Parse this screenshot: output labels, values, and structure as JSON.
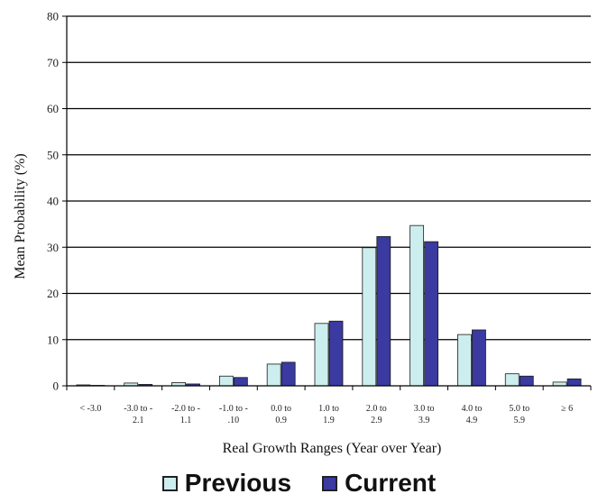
{
  "chart_data": {
    "type": "bar",
    "title": "",
    "xlabel": "Real Growth Ranges (Year over Year)",
    "ylabel": "Mean Probability (%)",
    "ylim": [
      0,
      80
    ],
    "yticks": [
      "0",
      "10",
      "20",
      "30",
      "40",
      "50",
      "60",
      "70",
      "80"
    ],
    "grid": "horizontal",
    "legend_position": "bottom",
    "categories": [
      [
        "< -3.0"
      ],
      [
        "-3.0 to -",
        "2.1"
      ],
      [
        "-2.0 to -",
        "1.1"
      ],
      [
        "-1.0 to -",
        ".10"
      ],
      [
        "0.0 to",
        "0.9"
      ],
      [
        "1.0 to",
        "1.9"
      ],
      [
        "2.0 to",
        "2.9"
      ],
      [
        "3.0 to",
        "3.9"
      ],
      [
        "4.0 to",
        "4.9"
      ],
      [
        "5.0 to",
        "5.9"
      ],
      [
        "≥ 6"
      ]
    ],
    "series": [
      {
        "name": "Previous",
        "color": "#cdeeee",
        "values": [
          0.2,
          0.6,
          0.7,
          2.1,
          4.7,
          13.5,
          29.9,
          34.7,
          11.1,
          2.6,
          0.8
        ]
      },
      {
        "name": "Current",
        "color": "#3a3aa0",
        "values": [
          0.1,
          0.3,
          0.4,
          1.8,
          5.1,
          14.0,
          32.3,
          31.2,
          12.1,
          2.1,
          1.5
        ]
      }
    ]
  }
}
